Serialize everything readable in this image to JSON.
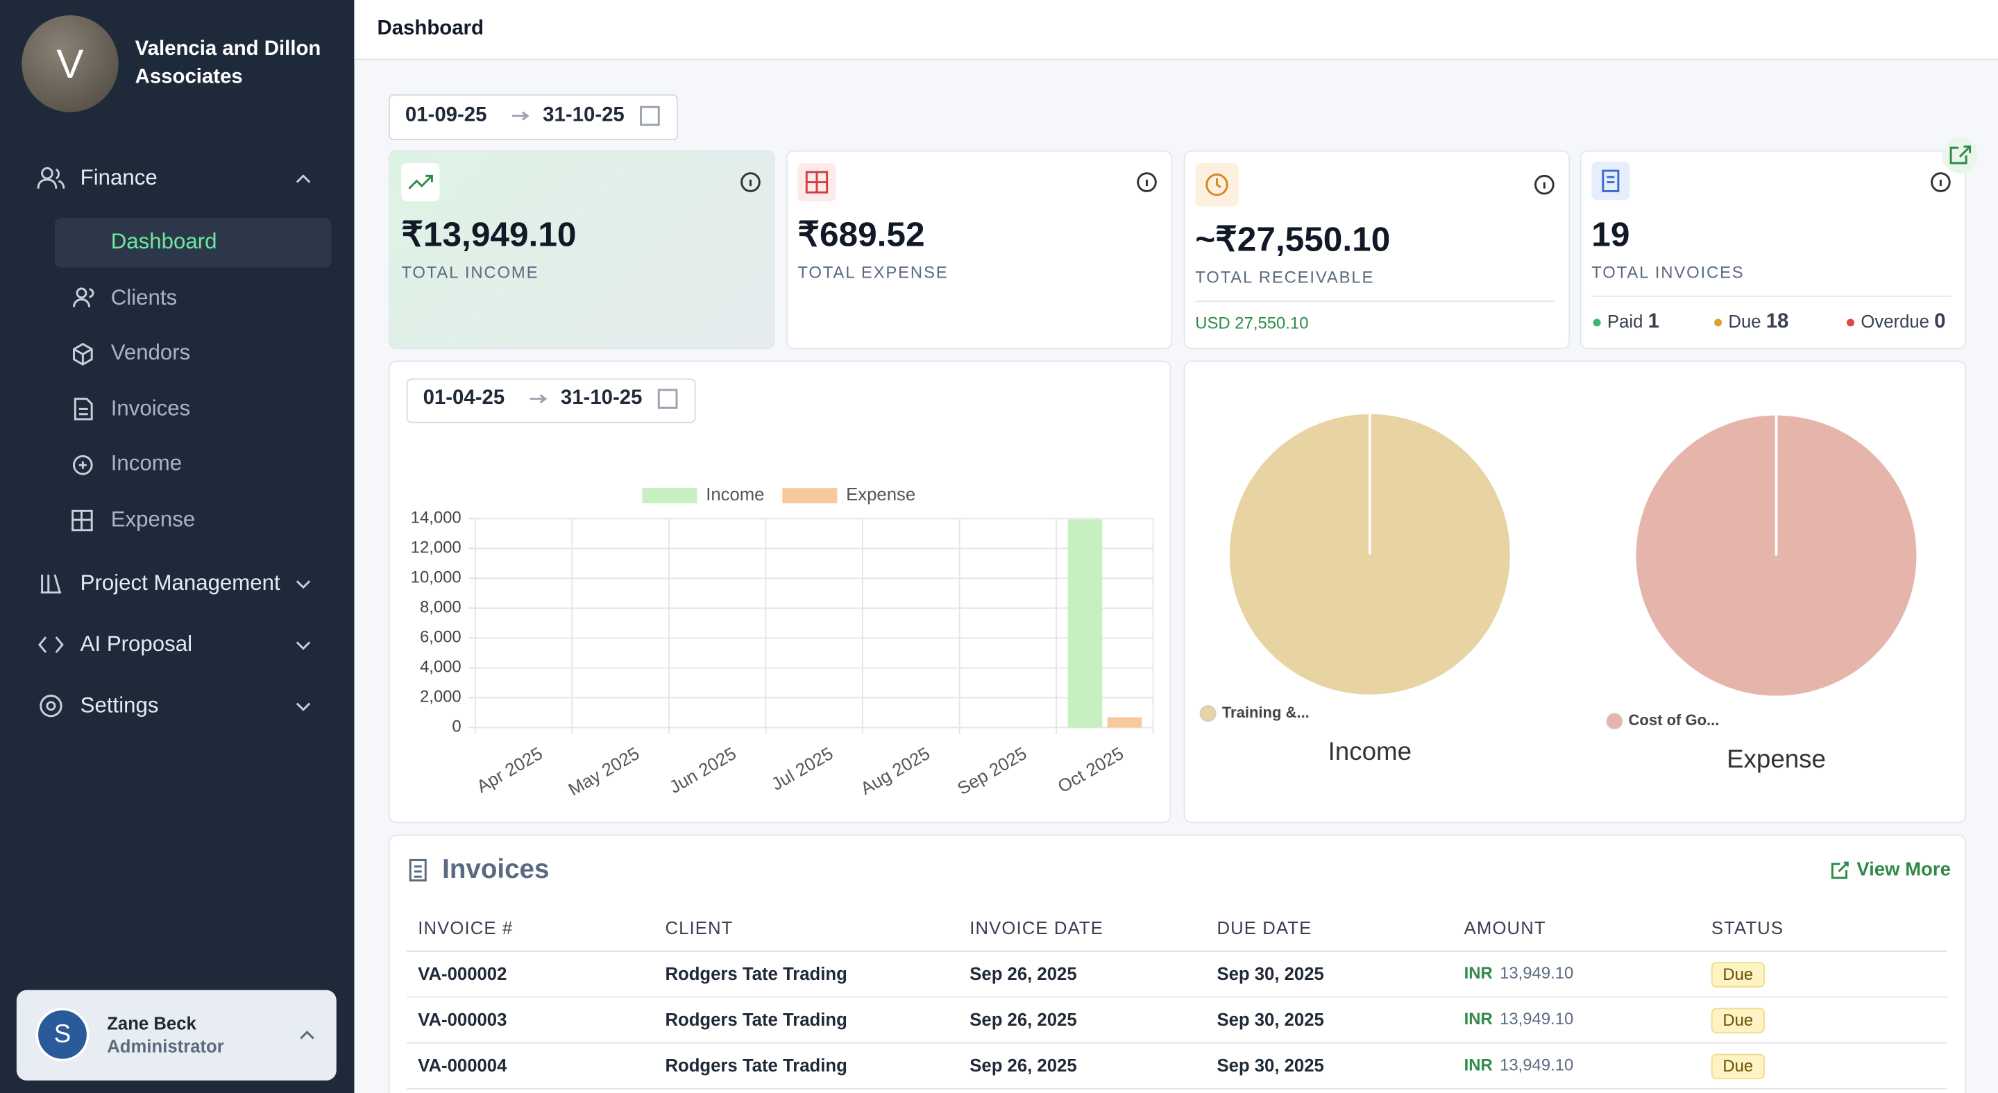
{
  "sidebar": {
    "org_initial": "V",
    "org_name": "Valencia and Dillon Associates",
    "nav": [
      {
        "label": "Finance",
        "children": [
          "Dashboard",
          "Clients",
          "Vendors",
          "Invoices",
          "Income",
          "Expense"
        ]
      },
      {
        "label": "Project Management"
      },
      {
        "label": "AI Proposal"
      },
      {
        "label": "Settings"
      }
    ],
    "user": {
      "initial": "S",
      "name": "Zane Beck",
      "role": "Administrator"
    }
  },
  "header": {
    "title": "Dashboard"
  },
  "date_range": {
    "from": "01-09-25",
    "to": "31-10-25"
  },
  "cards": [
    {
      "value": "₹13,949.10",
      "label": "TOTAL INCOME"
    },
    {
      "value": "₹689.52",
      "label": "TOTAL EXPENSE"
    },
    {
      "value": "~₹27,550.10",
      "label": "TOTAL RECEIVABLE",
      "sub": "USD 27,550.10"
    },
    {
      "value": 19,
      "label": "TOTAL INVOICES",
      "statuses": [
        {
          "label": "Paid",
          "count": 1
        },
        {
          "label": "Due",
          "count": 18
        },
        {
          "label": "Overdue",
          "count": 0
        }
      ]
    }
  ],
  "chart_data": [
    {
      "type": "bar",
      "date_range": {
        "from": "01-04-25",
        "to": "31-10-25"
      },
      "categories": [
        "Apr 2025",
        "May 2025",
        "Jun 2025",
        "Jul 2025",
        "Aug 2025",
        "Sep 2025",
        "Oct 2025"
      ],
      "series": [
        {
          "name": "Income",
          "color": "#c6f0c0",
          "values": [
            0,
            0,
            0,
            0,
            0,
            0,
            13949.1
          ]
        },
        {
          "name": "Expense",
          "color": "#f7c99c",
          "values": [
            0,
            0,
            0,
            0,
            0,
            0,
            689.52
          ]
        }
      ],
      "ylim": [
        0,
        14000
      ],
      "yticks": [
        {
          "value": 0,
          "label": "0"
        },
        {
          "value": 2000,
          "label": "2,000"
        },
        {
          "value": 4000,
          "label": "4,000"
        },
        {
          "value": 6000,
          "label": "6,000"
        },
        {
          "value": 8000,
          "label": "8,000"
        },
        {
          "value": 10000,
          "label": "10,000"
        },
        {
          "value": 12000,
          "label": "12,000"
        },
        {
          "value": 14000,
          "label": "14,000"
        }
      ],
      "grid": true
    },
    {
      "type": "pie",
      "title": "Income",
      "categories": [
        "Training &..."
      ],
      "values": [
        13949.1
      ],
      "colors": [
        "#e8d3a2"
      ]
    },
    {
      "type": "pie",
      "title": "Expense",
      "categories": [
        "Cost of Go..."
      ],
      "values": [
        689.52
      ],
      "colors": [
        "#e5b5ab"
      ]
    }
  ],
  "invoices": {
    "title": "Invoices",
    "view_more": "View More",
    "columns": [
      "INVOICE #",
      "CLIENT",
      "INVOICE DATE",
      "DUE DATE",
      "AMOUNT",
      "STATUS"
    ],
    "rows": [
      [
        "VA-000002",
        "Rodgers Tate Trading",
        "Sep 26, 2025",
        "Sep 30, 2025",
        "INR",
        "13,949.10",
        "Due"
      ],
      [
        "VA-000003",
        "Rodgers Tate Trading",
        "Sep 26, 2025",
        "Sep 30, 2025",
        "INR",
        "13,949.10",
        "Due"
      ],
      [
        "VA-000004",
        "Rodgers Tate Trading",
        "Sep 26, 2025",
        "Sep 30, 2025",
        "INR",
        "13,949.10",
        "Due"
      ]
    ]
  }
}
